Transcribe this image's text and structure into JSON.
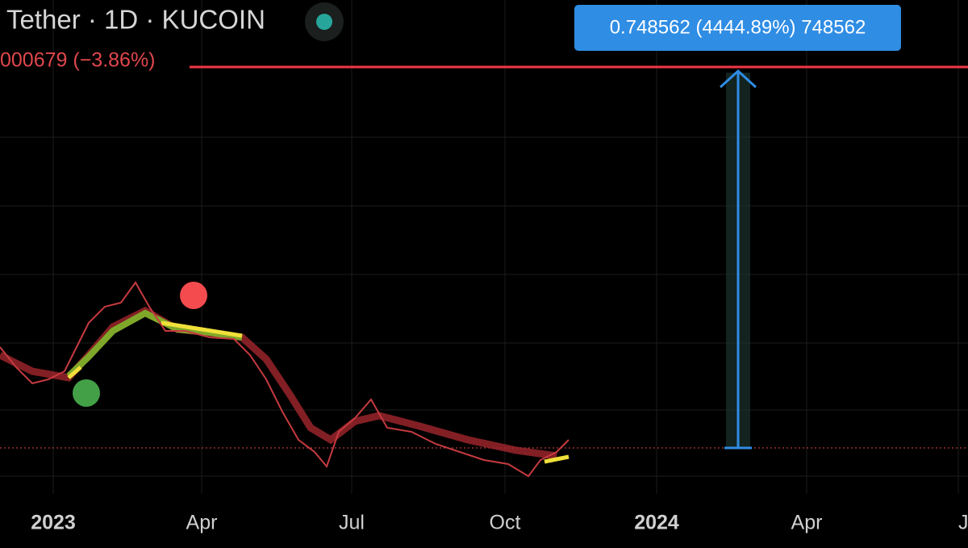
{
  "header": {
    "title": "Tether · 1D · KUCOIN",
    "price_change": "000679 (−3.86%)"
  },
  "measure": {
    "label": "0.748562 (4444.89%) 748562"
  },
  "x_axis": {
    "labels": [
      "2023",
      "Apr",
      "Jul",
      "Oct",
      "2024",
      "Apr",
      "Ju"
    ]
  }
}
